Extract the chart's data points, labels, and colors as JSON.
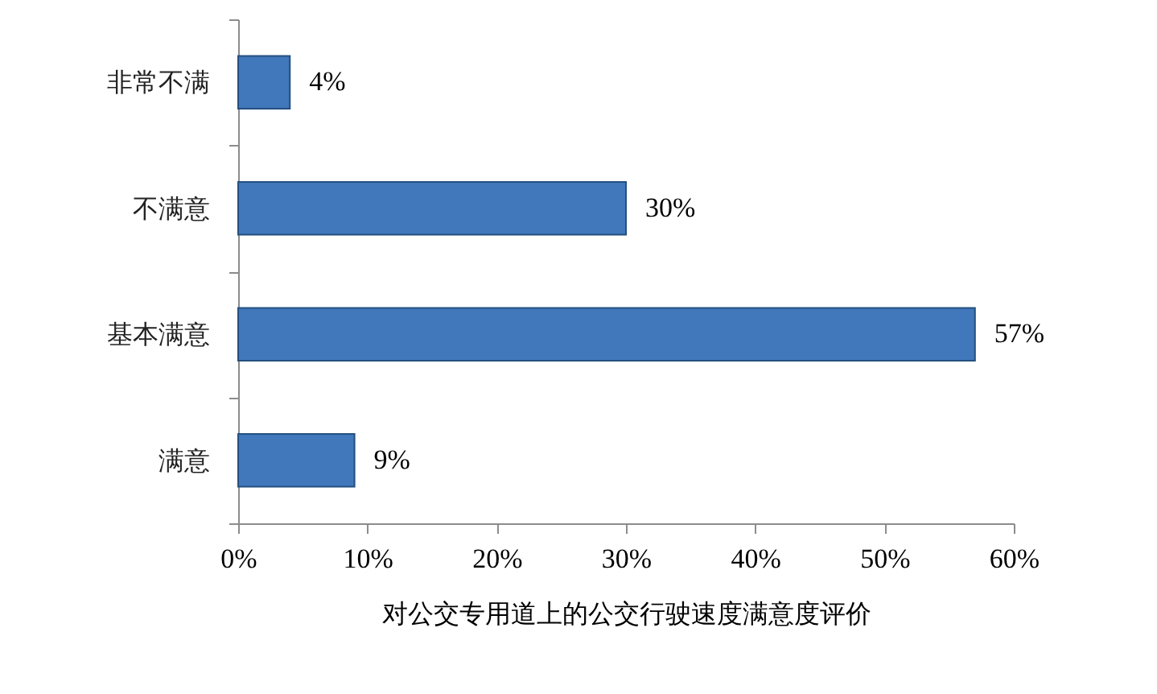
{
  "chart_data": {
    "type": "bar",
    "orientation": "horizontal",
    "xlabel": "对公交专用道上的公交行驶速度满意度评价",
    "categories": [
      "非常不满",
      "不满意",
      "基本满意",
      "满意"
    ],
    "values": [
      4,
      30,
      57,
      9
    ],
    "value_labels": [
      "4%",
      "30%",
      "57%",
      "9%"
    ],
    "color": "#4177bb",
    "xlim": [
      0,
      60
    ],
    "xticks": [
      {
        "value": 0,
        "label": "0%"
      },
      {
        "value": 10,
        "label": "10%"
      },
      {
        "value": 20,
        "label": "20%"
      },
      {
        "value": 30,
        "label": "30%"
      },
      {
        "value": 40,
        "label": "40%"
      },
      {
        "value": 50,
        "label": "50%"
      },
      {
        "value": 60,
        "label": "60%"
      }
    ]
  }
}
